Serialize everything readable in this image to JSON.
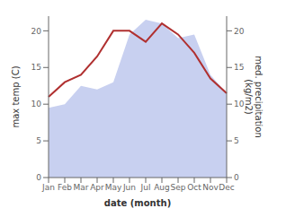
{
  "chart_data": {
    "type": "line",
    "x_label": "date (month)",
    "y_label": "max temp (C)",
    "y2_label": "med. precipitation\n(kg/m2)",
    "categories": [
      "Jan",
      "Feb",
      "Mar",
      "Apr",
      "May",
      "Jun",
      "Jul",
      "Aug",
      "Sep",
      "Oct",
      "Nov",
      "Dec"
    ],
    "series": [
      {
        "type": "area",
        "axis": "y2",
        "color": "#c8d0f0",
        "values": [
          9.5,
          10,
          12.5,
          12,
          13,
          19.5,
          21.5,
          21,
          19,
          19.5,
          14,
          11.5
        ]
      },
      {
        "type": "line",
        "color": "#b03030",
        "values": [
          11,
          13,
          14,
          16.5,
          20,
          20,
          18.5,
          21,
          19.5,
          17,
          13.5,
          11.5
        ]
      }
    ],
    "ylim": [
      0,
      22
    ],
    "yticks": [
      0,
      5,
      10,
      15,
      20
    ],
    "y2lim": [
      0,
      22
    ],
    "y2ticks": [
      0,
      5,
      10,
      15,
      20
    ],
    "grid": false
  }
}
